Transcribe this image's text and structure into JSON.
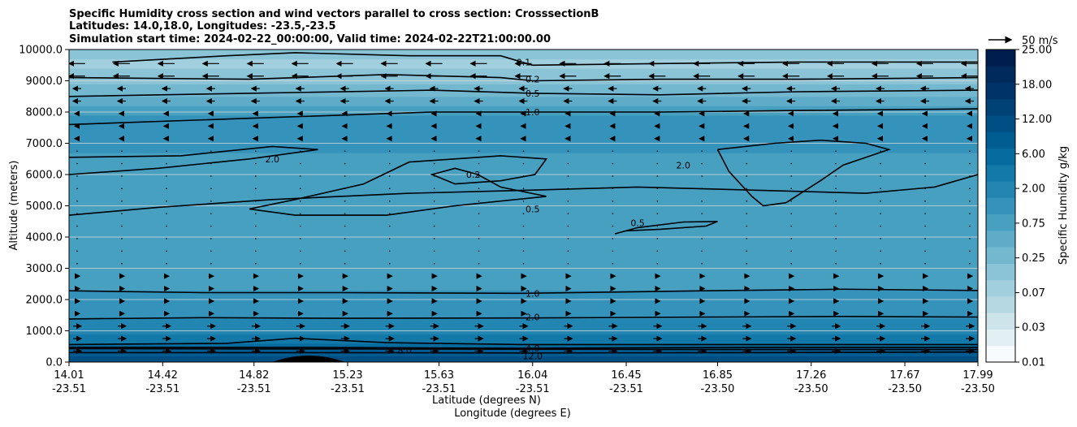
{
  "chart_data": {
    "type": "contour",
    "title_lines": [
      "Specific Humidity cross section and wind vectors parallel to cross section: CrosssectionB",
      "Latitudes: 14.0,18.0, Longitudes: -23.5,-23.5",
      "Simulation start time: 2024-02-22_00:00:00, Valid time: 2024-02-22T21:00:00.00"
    ],
    "ylabel": "Altitude (meters)",
    "xlabel_lines": [
      "Latitude (degrees N)",
      "Longitude (degrees E)"
    ],
    "ylim": [
      0,
      10000
    ],
    "y_ticks": [
      {
        "v": 0,
        "label": "0.0"
      },
      {
        "v": 1000,
        "label": "1000.0"
      },
      {
        "v": 2000,
        "label": "2000.0"
      },
      {
        "v": 3000,
        "label": "3000.0"
      },
      {
        "v": 4000,
        "label": "4000.0"
      },
      {
        "v": 5000,
        "label": "5000.0"
      },
      {
        "v": 6000,
        "label": "6000.0"
      },
      {
        "v": 7000,
        "label": "7000.0"
      },
      {
        "v": 8000,
        "label": "8000.0"
      },
      {
        "v": 9000,
        "label": "9000.0"
      },
      {
        "v": 10000,
        "label": "10000.0"
      }
    ],
    "x_range": [
      14.01,
      17.99
    ],
    "x_ticks": [
      {
        "lat": 14.01,
        "lat_label": "14.01",
        "lon_label": "-23.51"
      },
      {
        "lat": 14.42,
        "lat_label": "14.42",
        "lon_label": "-23.51"
      },
      {
        "lat": 14.82,
        "lat_label": "14.82",
        "lon_label": "-23.51"
      },
      {
        "lat": 15.23,
        "lat_label": "15.23",
        "lon_label": "-23.51"
      },
      {
        "lat": 15.63,
        "lat_label": "15.63",
        "lon_label": "-23.51"
      },
      {
        "lat": 16.04,
        "lat_label": "16.04",
        "lon_label": "-23.51"
      },
      {
        "lat": 16.45,
        "lat_label": "16.45",
        "lon_label": "-23.51"
      },
      {
        "lat": 16.85,
        "lat_label": "16.85",
        "lon_label": "-23.50"
      },
      {
        "lat": 17.26,
        "lat_label": "17.26",
        "lon_label": "-23.50"
      },
      {
        "lat": 17.67,
        "lat_label": "17.67",
        "lon_label": "-23.50"
      },
      {
        "lat": 17.99,
        "lat_label": "17.99",
        "lon_label": "-23.50"
      }
    ],
    "colorbar": {
      "label": "Specific Humidity g/kg",
      "levels": [
        0.01,
        0.02,
        0.03,
        0.05,
        0.07,
        0.1,
        0.25,
        0.5,
        0.75,
        1.0,
        2.0,
        4.0,
        6.0,
        8.0,
        12.0,
        14.0,
        18.0,
        20.0,
        25.0
      ],
      "tick_labels": [
        "0.01",
        "0.03",
        "0.07",
        "0.25",
        "0.75",
        "2.00",
        "6.00",
        "12.00",
        "18.00",
        "25.00"
      ],
      "colors": [
        "#f7fbfd",
        "#e2eff3",
        "#cde4eb",
        "#b6d8e3",
        "#a2cfdd",
        "#8ac4d6",
        "#73b8cf",
        "#5eacc8",
        "#48a0c1",
        "#3593bb",
        "#2386b2",
        "#1379a9",
        "#066c9f",
        "#005d92",
        "#004f84",
        "#004176",
        "#003468",
        "#002a5c",
        "#001d4f"
      ]
    },
    "wind_key": {
      "label": "50 m/s",
      "speed": 50
    },
    "field_profile": [
      {
        "z": 0,
        "q": 14.0
      },
      {
        "z": 300,
        "q": 11.0
      },
      {
        "z": 500,
        "q": 7.0
      },
      {
        "z": 1000,
        "q": 3.0
      },
      {
        "z": 1400,
        "q": 2.0
      },
      {
        "z": 2300,
        "q": 1.0
      },
      {
        "z": 4500,
        "q": 0.75
      },
      {
        "z": 6500,
        "q": 0.9
      },
      {
        "z": 7500,
        "q": 1.4
      },
      {
        "z": 8500,
        "q": 0.5
      },
      {
        "z": 9000,
        "q": 0.2
      },
      {
        "z": 9500,
        "q": 0.07
      },
      {
        "z": 10000,
        "q": 0.15
      }
    ],
    "contours": [
      {
        "level": "12.0",
        "pts": [
          [
            14.01,
            300
          ],
          [
            15.0,
            300
          ],
          [
            16.0,
            290
          ],
          [
            17.0,
            300
          ],
          [
            17.99,
            320
          ]
        ],
        "label_at": [
          16.04,
          190
        ]
      },
      {
        "level": "8.0",
        "pts": [
          [
            14.01,
            560
          ],
          [
            14.7,
            600
          ],
          [
            15.0,
            760
          ],
          [
            15.4,
            620
          ],
          [
            16.0,
            560
          ],
          [
            17.0,
            560
          ],
          [
            17.99,
            560
          ]
        ],
        "label_at": [
          15.48,
          380
        ]
      },
      {
        "level": "6.0",
        "pts": [
          [
            14.01,
            470
          ],
          [
            15.0,
            470
          ],
          [
            16.0,
            440
          ],
          [
            17.0,
            470
          ],
          [
            17.99,
            470
          ]
        ],
        "label_at": null
      },
      {
        "level": "4.0",
        "pts": [
          [
            14.01,
            430
          ],
          [
            15.0,
            420
          ],
          [
            16.0,
            410
          ],
          [
            17.0,
            400
          ],
          [
            17.99,
            400
          ]
        ],
        "label_at": [
          16.04,
          440
        ]
      },
      {
        "level": "2.0",
        "pts": [
          [
            14.01,
            1380
          ],
          [
            14.6,
            1420
          ],
          [
            15.2,
            1400
          ],
          [
            16.0,
            1410
          ],
          [
            16.8,
            1440
          ],
          [
            17.4,
            1460
          ],
          [
            17.99,
            1440
          ]
        ],
        "label_at": [
          16.04,
          1440
        ]
      },
      {
        "level": "1.0",
        "pts": [
          [
            14.01,
            2280
          ],
          [
            14.6,
            2220
          ],
          [
            15.2,
            2220
          ],
          [
            16.0,
            2200
          ],
          [
            16.8,
            2280
          ],
          [
            17.4,
            2330
          ],
          [
            17.99,
            2290
          ]
        ],
        "label_at": [
          16.04,
          2200
        ]
      },
      {
        "level": "0.5",
        "pts": [
          [
            14.01,
            4700
          ],
          [
            14.4,
            4950
          ],
          [
            14.9,
            5200
          ],
          [
            15.5,
            5400
          ],
          [
            16.04,
            5500
          ],
          [
            16.5,
            5600
          ],
          [
            17.0,
            5500
          ],
          [
            17.5,
            5400
          ],
          [
            17.8,
            5600
          ],
          [
            17.99,
            6000
          ]
        ],
        "label_at": [
          16.04,
          4900
        ]
      },
      {
        "level": "0.5",
        "pts": [
          [
            16.4,
            4100
          ],
          [
            16.5,
            4300
          ],
          [
            16.7,
            4480
          ],
          [
            16.85,
            4500
          ],
          [
            16.8,
            4350
          ],
          [
            16.6,
            4250
          ],
          [
            16.45,
            4200
          ]
        ],
        "label_at": [
          16.5,
          4450
        ]
      },
      {
        "level": "0.2",
        "pts": [
          [
            15.0,
            5200
          ],
          [
            15.3,
            5700
          ],
          [
            15.5,
            6400
          ],
          [
            15.9,
            6600
          ],
          [
            16.1,
            6500
          ],
          [
            16.05,
            6000
          ],
          [
            15.9,
            5800
          ],
          [
            15.7,
            5700
          ],
          [
            15.6,
            6000
          ],
          [
            15.7,
            6200
          ],
          [
            15.8,
            6000
          ],
          [
            15.9,
            5600
          ],
          [
            16.1,
            5300
          ],
          [
            15.7,
            5000
          ],
          [
            15.4,
            4700
          ],
          [
            15.0,
            4700
          ],
          [
            14.8,
            4900
          ],
          [
            15.0,
            5200
          ]
        ],
        "label_at": [
          15.78,
          6000
        ]
      },
      {
        "level": "2.0",
        "pts": [
          [
            14.01,
            6550
          ],
          [
            14.5,
            6600
          ],
          [
            14.9,
            6900
          ],
          [
            15.1,
            6800
          ],
          [
            14.8,
            6500
          ],
          [
            14.4,
            6200
          ],
          [
            14.01,
            6000
          ]
        ],
        "label_at": [
          14.9,
          6500
        ]
      },
      {
        "level": "2.0",
        "pts": [
          [
            16.85,
            6800
          ],
          [
            17.1,
            7000
          ],
          [
            17.3,
            7100
          ],
          [
            17.5,
            7000
          ],
          [
            17.6,
            6800
          ],
          [
            17.4,
            6300
          ],
          [
            17.3,
            5800
          ],
          [
            17.15,
            5100
          ],
          [
            17.05,
            5000
          ],
          [
            17.0,
            5300
          ],
          [
            16.9,
            6100
          ],
          [
            16.85,
            6800
          ]
        ],
        "label_at": [
          16.7,
          6300
        ]
      },
      {
        "level": "1.0",
        "pts": [
          [
            14.01,
            7600
          ],
          [
            14.8,
            7800
          ],
          [
            15.6,
            8000
          ],
          [
            16.04,
            8000
          ],
          [
            16.6,
            8000
          ],
          [
            17.2,
            8050
          ],
          [
            17.99,
            8100
          ]
        ],
        "label_at": [
          16.04,
          8000
        ]
      },
      {
        "level": "0.5",
        "pts": [
          [
            14.01,
            8500
          ],
          [
            14.8,
            8600
          ],
          [
            15.6,
            8700
          ],
          [
            16.04,
            8600
          ],
          [
            16.6,
            8550
          ],
          [
            17.2,
            8650
          ],
          [
            17.99,
            8700
          ]
        ],
        "label_at": [
          16.04,
          8600
        ]
      },
      {
        "level": "0.2",
        "pts": [
          [
            14.01,
            9100
          ],
          [
            14.8,
            9050
          ],
          [
            15.4,
            9200
          ],
          [
            15.9,
            9100
          ],
          [
            16.04,
            9000
          ],
          [
            16.6,
            9050
          ],
          [
            17.2,
            9050
          ],
          [
            17.99,
            9100
          ]
        ],
        "label_at": [
          16.04,
          9050
        ]
      },
      {
        "level": "0.1",
        "pts": [
          [
            14.2,
            9600
          ],
          [
            14.7,
            9800
          ],
          [
            15.0,
            9900
          ],
          [
            15.5,
            9800
          ],
          [
            15.9,
            9800
          ],
          [
            16.04,
            9500
          ],
          [
            16.6,
            9550
          ],
          [
            17.2,
            9600
          ],
          [
            17.99,
            9600
          ]
        ],
        "label_at": [
          16.0,
          9600
        ]
      }
    ]
  }
}
